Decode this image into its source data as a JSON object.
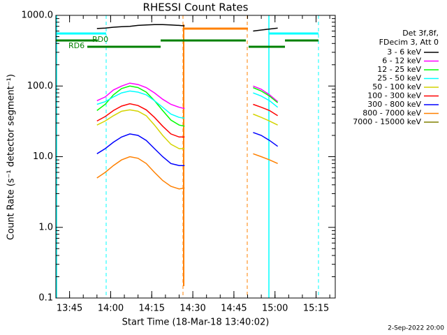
{
  "chart_data": {
    "type": "line",
    "title": "RHESSI Count Rates",
    "x_label": "Start Time (18-Mar-18 13:40:02)",
    "y_label": "Count Rate (s⁻¹ detector segment⁻¹)",
    "legend_header": [
      "Det 3f,8f,",
      "FDecim 3, Att 0"
    ],
    "annotations": [
      "RD0",
      "RD6"
    ],
    "footer": "2-Sep-2022 20:00",
    "log_scale": true,
    "xlim": [
      "13:40",
      "15:22"
    ],
    "xticks": [
      "13:45",
      "14:00",
      "14:15",
      "14:30",
      "14:45",
      "15:00",
      "15:15"
    ],
    "ylim": [
      0.1,
      1000
    ],
    "yticks": [
      {
        "value": 0.1,
        "label": "0.1"
      },
      {
        "value": 1,
        "label": "1.0"
      },
      {
        "value": 10,
        "label": "10.0"
      },
      {
        "value": 100,
        "label": "100.0"
      },
      {
        "value": 1000,
        "label": "1000.0"
      }
    ],
    "x": [
      "13:55",
      "13:58",
      "14:01",
      "14:04",
      "14:07",
      "14:10",
      "14:13",
      "14:16",
      "14:19",
      "14:22",
      "14:25",
      "14:27",
      "14:40",
      "14:52",
      "14:55",
      "14:58",
      "15:01"
    ],
    "series": [
      {
        "name": "3 - 6 keV",
        "color": "#000000",
        "values": [
          650,
          660,
          680,
          690,
          700,
          720,
          730,
          740,
          740,
          730,
          720,
          710,
          null,
          600,
          620,
          640,
          660
        ]
      },
      {
        "name": "6 - 12 keV",
        "color": "#ff00ff",
        "values": [
          62,
          70,
          88,
          100,
          110,
          105,
          95,
          80,
          65,
          55,
          50,
          48,
          null,
          100,
          90,
          75,
          60
        ]
      },
      {
        "name": "12 - 25 keV",
        "color": "#00ff00",
        "values": [
          45,
          55,
          75,
          92,
          100,
          95,
          82,
          62,
          45,
          33,
          28,
          27,
          null,
          95,
          85,
          72,
          58
        ]
      },
      {
        "name": "25 - 50 keV",
        "color": "#00ffff",
        "values": [
          55,
          60,
          70,
          80,
          85,
          82,
          75,
          62,
          50,
          40,
          36,
          35,
          null,
          80,
          72,
          62,
          50
        ]
      },
      {
        "name": "50 - 100 keV",
        "color": "#d4d400",
        "values": [
          28,
          32,
          38,
          44,
          46,
          44,
          38,
          28,
          20,
          15,
          13,
          13,
          null,
          40,
          36,
          32,
          28
        ]
      },
      {
        "name": "100 - 300 keV",
        "color": "#ff0000",
        "values": [
          32,
          37,
          45,
          52,
          56,
          53,
          46,
          36,
          27,
          21,
          19,
          19,
          null,
          55,
          50,
          45,
          38
        ]
      },
      {
        "name": "300 - 800 keV",
        "color": "#0000ff",
        "values": [
          11,
          13,
          16,
          19,
          21,
          20,
          17,
          13,
          10,
          8,
          7.5,
          7.5,
          null,
          22,
          20,
          17,
          14
        ]
      },
      {
        "name": "800 - 7000 keV",
        "color": "#ff8000",
        "values": [
          5,
          6,
          7.5,
          9,
          10,
          9.5,
          8,
          6,
          4.6,
          3.8,
          3.5,
          3.6,
          null,
          11,
          10,
          9,
          8
        ]
      },
      {
        "name": "7000 - 15000 keV",
        "color": "#808000",
        "values": [
          null,
          null,
          null,
          null,
          null,
          null,
          null,
          null,
          null,
          null,
          null,
          null,
          null,
          null,
          null,
          null,
          null
        ]
      }
    ]
  }
}
